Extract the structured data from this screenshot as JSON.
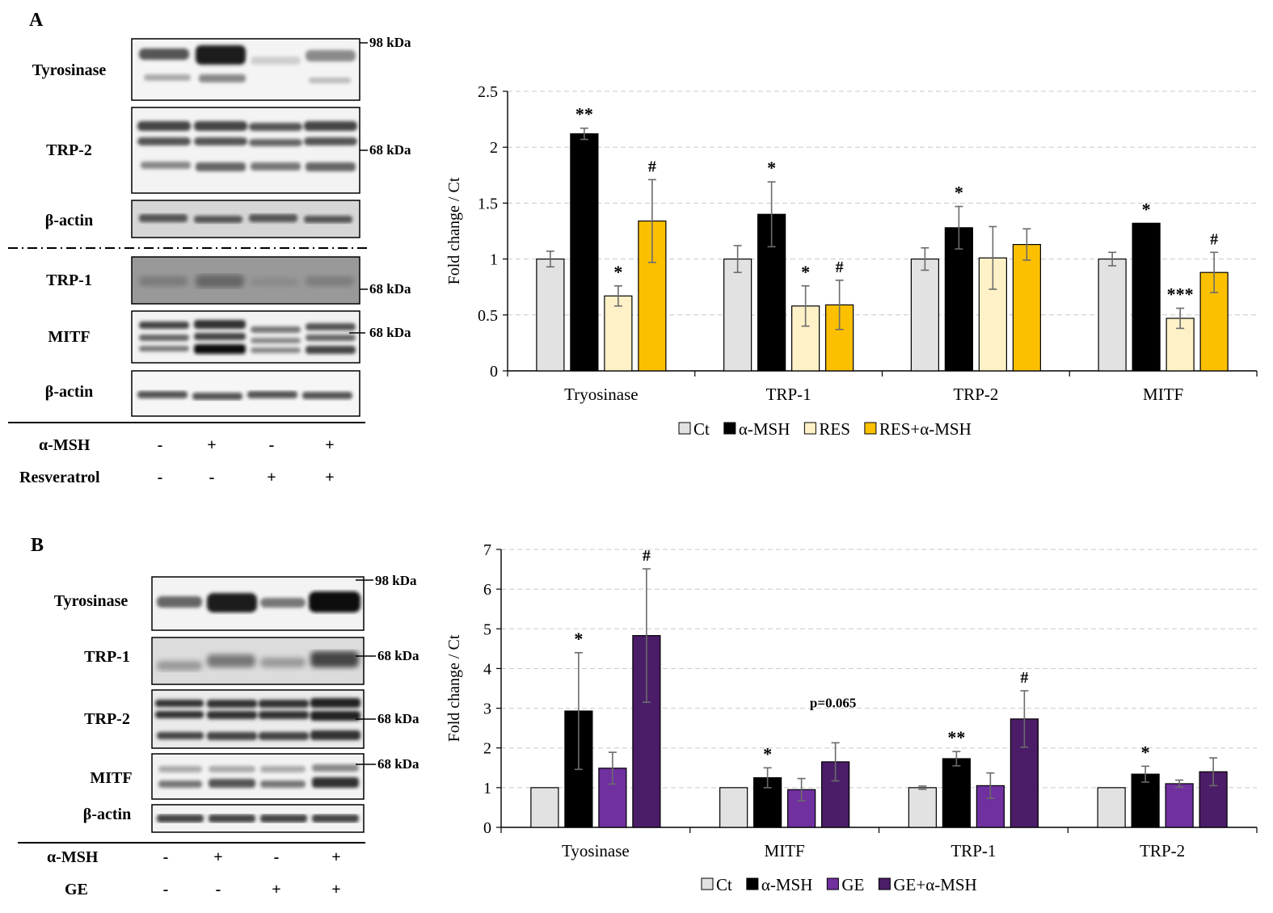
{
  "panel_a": {
    "letter": "A",
    "blot": {
      "upper_rows": [
        {
          "label": "Tyrosinase",
          "marker": "98 kDa"
        },
        {
          "label": "TRP-2",
          "marker": "68 kDa"
        },
        {
          "label": "β-actin",
          "marker": ""
        }
      ],
      "lower_rows": [
        {
          "label": "TRP-1",
          "marker": "68 kDa"
        },
        {
          "label": "MITF",
          "marker": "68 kDa"
        },
        {
          "label": "β-actin",
          "marker": ""
        }
      ],
      "conditions": [
        {
          "label": "α-MSH",
          "signs": [
            "-",
            "+",
            "-",
            "+"
          ]
        },
        {
          "label": "Resveratrol",
          "signs": [
            "-",
            "-",
            "+",
            "+"
          ]
        }
      ]
    }
  },
  "panel_b": {
    "letter": "B",
    "blot": {
      "rows": [
        {
          "label": "Tyrosinase",
          "marker": "98 kDa"
        },
        {
          "label": "TRP-1",
          "marker": "68 kDa"
        },
        {
          "label": "TRP-2",
          "marker": "68 kDa"
        },
        {
          "label": "MITF",
          "marker": "68 kDa"
        },
        {
          "label": "β-actin",
          "marker": ""
        }
      ],
      "conditions": [
        {
          "label": "α-MSH",
          "signs": [
            "-",
            "+",
            "-",
            "+"
          ]
        },
        {
          "label": "GE",
          "signs": [
            "-",
            "-",
            "+",
            "+"
          ]
        }
      ]
    }
  },
  "chart_data": [
    {
      "type": "bar",
      "panel": "A",
      "title": "",
      "xlabel": "",
      "ylabel": "Fold change / Ct",
      "ylim": [
        0,
        2.5
      ],
      "yticks": [
        "0",
        "0.5",
        "1",
        "1.5",
        "2",
        "2.5"
      ],
      "grid": true,
      "legend_position": "bottom",
      "categories": [
        "Tryosinase",
        "TRP-1",
        "TRP-2",
        "MITF"
      ],
      "series": [
        {
          "name": "Ct",
          "color": "#e2e2e2",
          "values": [
            1.0,
            1.0,
            1.0,
            1.0
          ],
          "errors": [
            0.07,
            0.12,
            0.1,
            0.06
          ],
          "annotations": [
            "",
            "",
            "",
            ""
          ]
        },
        {
          "name": "α-MSH",
          "color": "#000000",
          "values": [
            2.12,
            1.4,
            1.28,
            1.32
          ],
          "errors": [
            0.05,
            0.29,
            0.19,
            0.0
          ],
          "annotations": [
            "**",
            "*",
            "*",
            "*"
          ]
        },
        {
          "name": "RES",
          "color": "#fff1c7",
          "values": [
            0.67,
            0.58,
            1.01,
            0.47
          ],
          "errors": [
            0.09,
            0.18,
            0.28,
            0.09
          ],
          "annotations": [
            "*",
            "*",
            "",
            "***"
          ]
        },
        {
          "name": "RES+α-MSH",
          "color": "#fcc000",
          "values": [
            1.34,
            0.59,
            1.13,
            0.88
          ],
          "errors": [
            0.37,
            0.22,
            0.14,
            0.18
          ],
          "annotations": [
            "#",
            "#",
            "",
            "#"
          ]
        }
      ],
      "extra_annotations": []
    },
    {
      "type": "bar",
      "panel": "B",
      "title": "",
      "xlabel": "",
      "ylabel": "Fold change / Ct",
      "ylim": [
        0,
        7
      ],
      "yticks": [
        "0",
        "1",
        "2",
        "3",
        "4",
        "5",
        "6",
        "7"
      ],
      "grid": true,
      "legend_position": "bottom",
      "categories": [
        "Tyosinase",
        "MITF",
        "TRP-1",
        "TRP-2"
      ],
      "series": [
        {
          "name": "Ct",
          "color": "#e2e2e2",
          "values": [
            1.0,
            1.0,
            1.0,
            1.0
          ],
          "errors": [
            0.0,
            0.0,
            0.04,
            0.0
          ],
          "annotations": [
            "",
            "",
            "",
            ""
          ]
        },
        {
          "name": "α-MSH",
          "color": "#000000",
          "values": [
            2.93,
            1.25,
            1.73,
            1.34
          ],
          "errors": [
            1.47,
            0.25,
            0.18,
            0.2
          ],
          "annotations": [
            "*",
            "*",
            "**",
            "*"
          ]
        },
        {
          "name": "GE",
          "color": "#7030a0",
          "values": [
            1.49,
            0.95,
            1.05,
            1.1
          ],
          "errors": [
            0.4,
            0.28,
            0.32,
            0.09
          ],
          "annotations": [
            "",
            "",
            "",
            ""
          ]
        },
        {
          "name": "GE+α-MSH",
          "color": "#4b1d68",
          "values": [
            4.83,
            1.65,
            2.73,
            1.4
          ],
          "errors": [
            1.68,
            0.48,
            0.71,
            0.35
          ],
          "annotations": [
            "#",
            "",
            "#",
            ""
          ]
        }
      ],
      "extra_annotations": [
        {
          "category": "MITF",
          "text": "p=0.065"
        }
      ]
    }
  ]
}
